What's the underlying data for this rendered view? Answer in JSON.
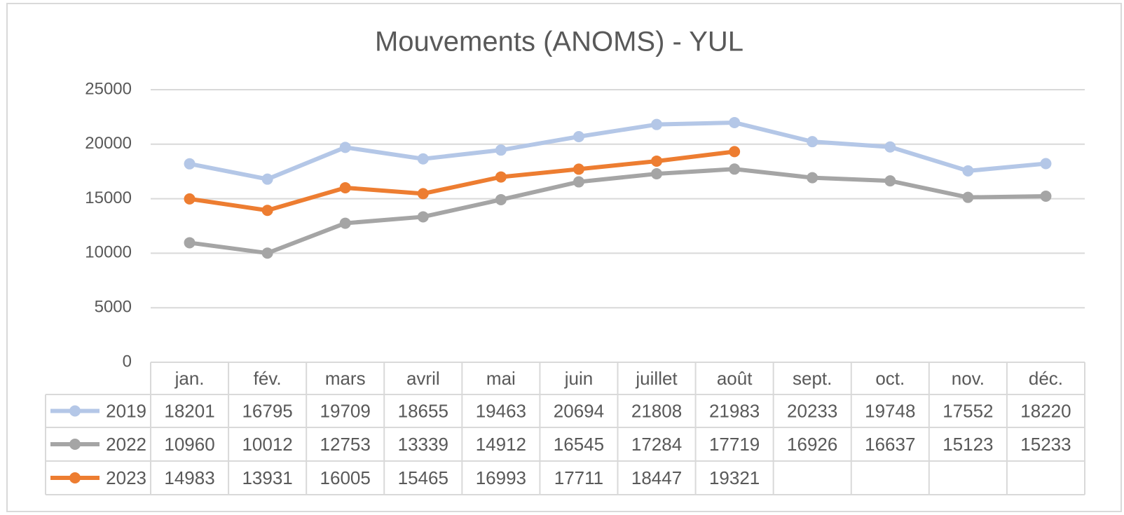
{
  "chart_data": {
    "type": "line",
    "title": "Mouvements (ANOMS) - YUL",
    "categories": [
      "jan.",
      "fév.",
      "mars",
      "avril",
      "mai",
      "juin",
      "juillet",
      "août",
      "sept.",
      "oct.",
      "nov.",
      "déc."
    ],
    "series": [
      {
        "name": "2019",
        "color": "#b4c7e7",
        "values": [
          18201,
          16795,
          19709,
          18655,
          19463,
          20694,
          21808,
          21983,
          20233,
          19748,
          17552,
          18220
        ]
      },
      {
        "name": "2022",
        "color": "#a5a5a5",
        "values": [
          10960,
          10012,
          12753,
          13339,
          14912,
          16545,
          17284,
          17719,
          16926,
          16637,
          15123,
          15233
        ]
      },
      {
        "name": "2023",
        "color": "#ed7d31",
        "values": [
          14983,
          13931,
          16005,
          15465,
          16993,
          17711,
          18447,
          19321,
          null,
          null,
          null,
          null
        ]
      }
    ],
    "ylim": [
      0,
      25000
    ],
    "yticks": [
      0,
      5000,
      10000,
      15000,
      20000,
      25000
    ],
    "grid": true
  }
}
